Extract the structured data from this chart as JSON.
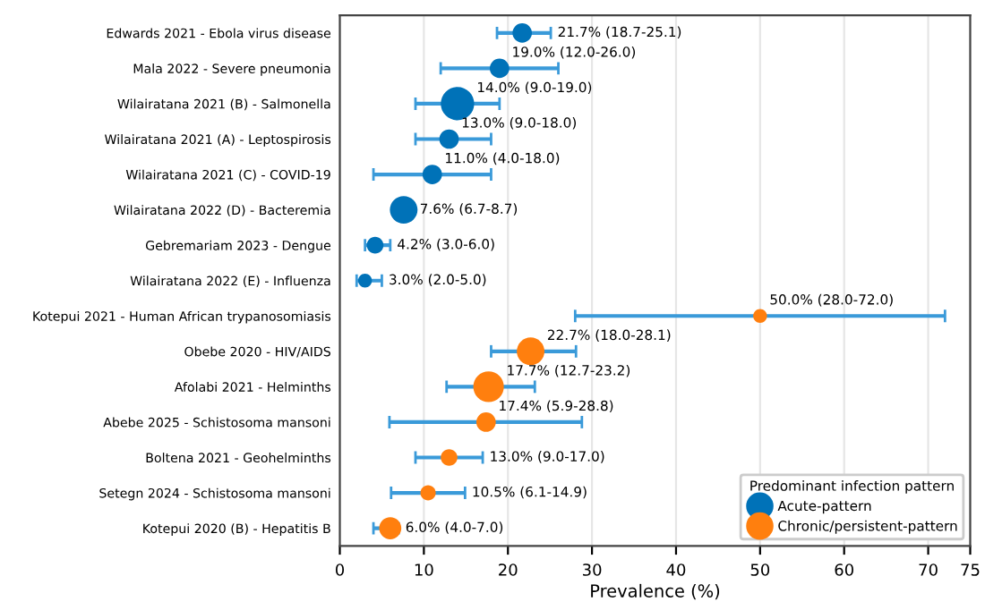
{
  "chart_data": {
    "type": "bubble",
    "orientation": "horizontal",
    "xlabel": "Prevalence (%)",
    "legend_title": "Predominant infection pattern",
    "legend": "bottom right",
    "grid": "x",
    "categories": [
      "Edwards 2021 - Ebola virus disease",
      "Mala 2022 - Severe pneumonia",
      "Wilairatana 2021 (B) - Salmonella",
      "Wilairatana 2021 (A) - Leptospirosis",
      "Wilairatana 2021 (C) - COVID-19",
      "Wilairatana 2022 (D) - Bacteremia",
      "Gebremariam 2023 - Dengue",
      "Wilairatana 2022 (E) - Influenza",
      "Kotepui 2021 - Human African trypanosomiasis",
      "Obebe 2020 - HIV/AIDS",
      "Afolabi 2021 - Helminths",
      "Abebe 2025 - Schistosoma mansoni",
      "Boltena 2021 - Geohelminths",
      "Setegn 2024 - Schistosoma mansoni",
      "Kotepui 2020 (B) - Hepatitis B"
    ],
    "xlim": [
      0,
      75
    ],
    "xticks": [
      0,
      10,
      20,
      30,
      40,
      50,
      60,
      70,
      75
    ],
    "series": [
      {
        "name": "Acute-pattern",
        "color": "#0072b8",
        "values": [
          21.7,
          19.0,
          14.0,
          13.0,
          11.0,
          7.6,
          4.2,
          3.0,
          null,
          null,
          null,
          null,
          null,
          null,
          null
        ],
        "errors": [
          [
            18.7,
            25.1
          ],
          [
            12.0,
            26.0
          ],
          [
            9.0,
            19.0
          ],
          [
            9.0,
            18.0
          ],
          [
            4.0,
            18.0
          ],
          [
            6.7,
            8.7
          ],
          [
            3.0,
            6.0
          ],
          [
            2.0,
            5.0
          ],
          null,
          null,
          null,
          null,
          null,
          null,
          null
        ],
        "sizes": [
          0.34,
          0.34,
          1,
          0.34,
          0.34,
          0.69,
          0.25,
          0.17,
          null,
          null,
          null,
          null,
          null,
          null,
          null
        ],
        "value_labels": [
          "21.7% (18.7-25.1)",
          "19.0% (12.0-26.0)",
          "14.0% (9.0-19.0)",
          "13.0% (9.0-18.0)",
          "11.0% (4.0-18.0)",
          "7.6% (6.7-8.7)",
          "4.2% (3.0-6.0)",
          "3.0% (2.0-5.0)",
          null,
          null,
          null,
          null,
          null,
          null,
          null
        ]
      },
      {
        "name": "Chronic/persistent-pattern",
        "color": "#ff7f0e",
        "values": [
          null,
          null,
          null,
          null,
          null,
          null,
          null,
          null,
          50.0,
          22.7,
          17.7,
          17.4,
          13.0,
          10.5,
          6.0
        ],
        "errors": [
          null,
          null,
          null,
          null,
          null,
          null,
          null,
          null,
          [
            28.0,
            72.0
          ],
          [
            18.0,
            28.1
          ],
          [
            12.7,
            23.2
          ],
          [
            5.9,
            28.8
          ],
          [
            9.0,
            17.0
          ],
          [
            6.1,
            14.9
          ],
          [
            4.0,
            7.0
          ]
        ],
        "sizes": [
          null,
          null,
          null,
          null,
          null,
          null,
          null,
          null,
          0.17,
          0.69,
          0.84,
          0.34,
          0.25,
          0.21,
          0.44
        ],
        "value_labels": [
          null,
          null,
          null,
          null,
          null,
          null,
          null,
          null,
          "50.0% (28.0-72.0)",
          "22.7% (18.0-28.1)",
          "17.7% (12.7-23.2)",
          "17.4% (5.9-28.8)",
          "13.0% (9.0-17.0)",
          "10.5% (6.1-14.9)",
          "6.0% (4.0-7.0)"
        ]
      }
    ]
  }
}
